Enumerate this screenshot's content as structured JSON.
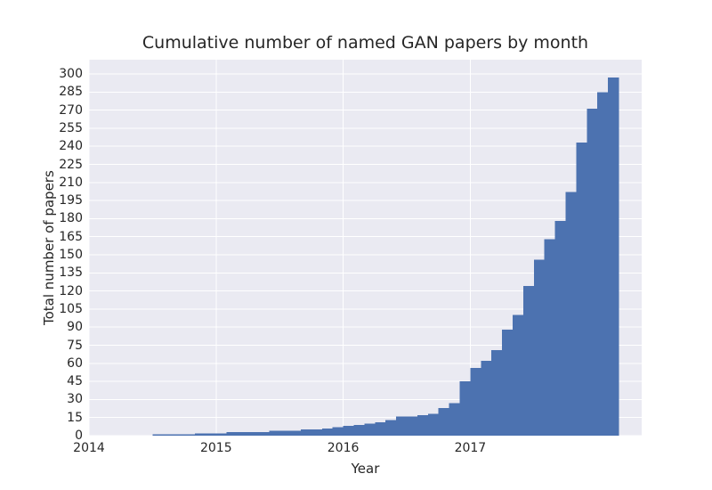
{
  "colors": {
    "figure_bg": "#ffffff",
    "axes_bg": "#eaeaf2",
    "grid": "#ffffff",
    "bar": "#4c72b0",
    "text": "#262626"
  },
  "chart_data": {
    "type": "bar",
    "title": "Cumulative number of named GAN papers by month",
    "xlabel": "Year",
    "ylabel": "Total number of papers",
    "legend_position": "none",
    "grid": true,
    "x_tick_labels": [
      "2014",
      "2015",
      "2016",
      "2017"
    ],
    "x_tick_years": [
      2014,
      2015,
      2016,
      2017
    ],
    "y_ticks": [
      0,
      15,
      30,
      45,
      60,
      75,
      90,
      105,
      120,
      135,
      150,
      165,
      180,
      195,
      210,
      225,
      240,
      255,
      270,
      285,
      300
    ],
    "ylim": [
      0,
      312
    ],
    "xlim_years": [
      2014.0,
      2018.35
    ],
    "months": [
      "2014-07",
      "2014-08",
      "2014-09",
      "2014-10",
      "2014-11",
      "2014-12",
      "2015-01",
      "2015-02",
      "2015-03",
      "2015-04",
      "2015-05",
      "2015-06",
      "2015-07",
      "2015-08",
      "2015-09",
      "2015-10",
      "2015-11",
      "2015-12",
      "2016-01",
      "2016-02",
      "2016-03",
      "2016-04",
      "2016-05",
      "2016-06",
      "2016-07",
      "2016-08",
      "2016-09",
      "2016-10",
      "2016-11",
      "2016-12",
      "2017-01",
      "2017-02",
      "2017-03",
      "2017-04",
      "2017-05",
      "2017-06",
      "2017-07",
      "2017-08",
      "2017-09",
      "2017-10",
      "2017-11",
      "2017-12",
      "2018-01",
      "2018-02"
    ],
    "cumulative_counts": [
      1,
      1,
      1,
      1,
      2,
      2,
      2,
      3,
      3,
      3,
      3,
      4,
      4,
      4,
      5,
      5,
      6,
      7,
      8,
      9,
      10,
      11,
      13,
      16,
      16,
      17,
      18,
      23,
      27,
      45,
      56,
      62,
      71,
      88,
      100,
      124,
      146,
      163,
      178,
      202,
      243,
      271,
      285,
      297
    ]
  }
}
